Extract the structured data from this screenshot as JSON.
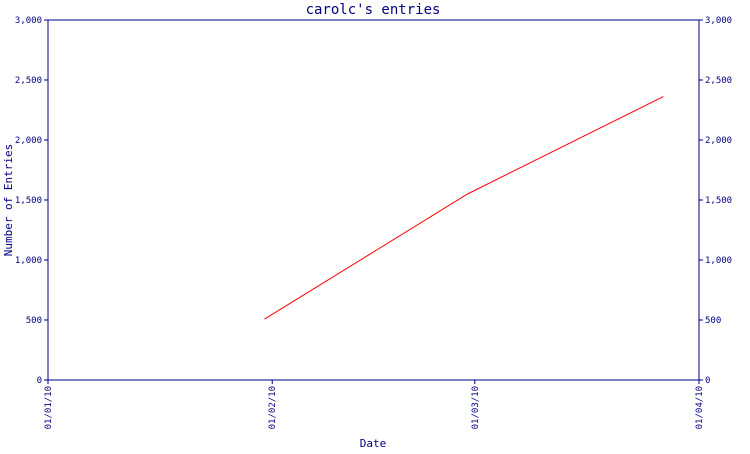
{
  "chart_data": {
    "type": "line",
    "title": "carolc's entries",
    "xlabel": "Date",
    "ylabel": "Number of Entries",
    "x_tick_labels": [
      "01/01/10",
      "01/02/10",
      "01/03/10",
      "01/04/10"
    ],
    "y_tick_labels": [
      "0",
      "500",
      "1,000",
      "1,500",
      "2,000",
      "2,500",
      "3,000"
    ],
    "y_ticks": [
      0,
      500,
      1000,
      1500,
      2000,
      2500,
      3000
    ],
    "ylim": [
      0,
      3000
    ],
    "xlim": [
      "2010-01-01",
      "2010-04-01"
    ],
    "grid": false,
    "dual_y_axis": true,
    "series": [
      {
        "color": "#ff0000",
        "x": [
          "2010-01-31",
          "2010-02-28",
          "2010-03-27"
        ],
        "values": [
          510,
          1550,
          2360
        ]
      }
    ],
    "colors": {
      "axis": "#000080",
      "text": "#000080",
      "line": "#ff0000",
      "background": "#ffffff"
    }
  }
}
